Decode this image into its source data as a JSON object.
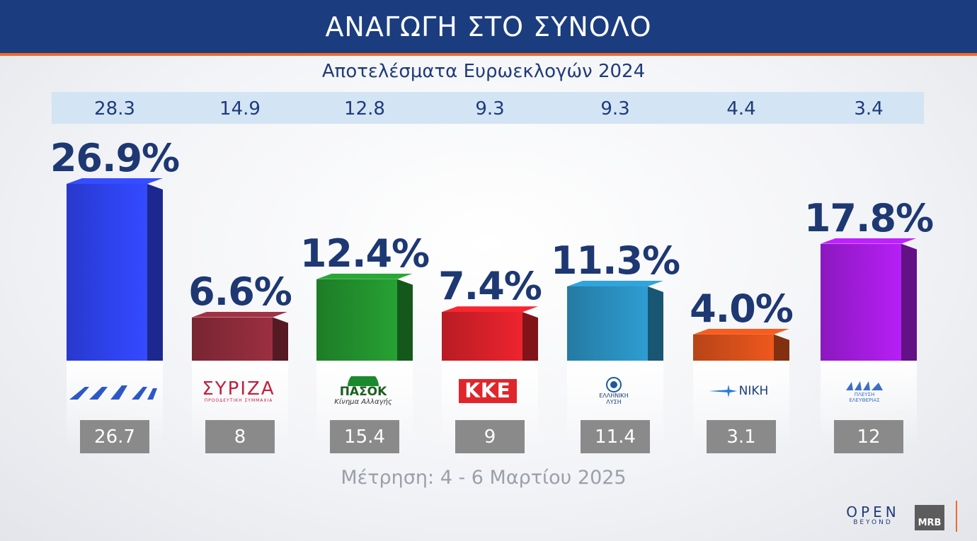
{
  "header": {
    "title": "ΑΝΑΓΩΓΗ ΣΤΟ ΣΥΝΟΛΟ"
  },
  "subtitle": "Αποτελέσματα Ευρωεκλογών 2024",
  "footer": {
    "survey_dates": "Μέτρηση: 4 - 6 Μαρτίου 2025"
  },
  "branding": {
    "open": "OPEN",
    "open_sub": "BEYOND",
    "mrb": "MRB"
  },
  "chart_data": {
    "type": "bar",
    "title": "ΑΝΑΓΩΓΗ ΣΤΟ ΣΥΝΟΛΟ",
    "categories": [
      "ΝΔ",
      "ΣΥΡΙΖΑ",
      "ΠΑΣΟΚ",
      "ΚΚΕ",
      "ΕΛΛΗΝΙΚΗ ΛΥΣΗ",
      "ΝΙΚΗ",
      "ΠΛΕΥΣΗ ΕΛΕΥΘΕΡΙΑΣ"
    ],
    "values": [
      26.9,
      6.6,
      12.4,
      7.4,
      11.3,
      4.0,
      17.8
    ],
    "value_labels": [
      "26.9%",
      "6.6%",
      "12.4%",
      "7.4%",
      "11.3%",
      "4.0%",
      "17.8%"
    ],
    "euro_2024": [
      "28.3",
      "14.9",
      "12.8",
      "9.3",
      "9.3",
      "4.4",
      "3.4"
    ],
    "previous_measurement": [
      "26.7",
      "8",
      "15.4",
      "9",
      "11.4",
      "3.1",
      "12"
    ],
    "colors": [
      "#2f43f0",
      "#8d2b3b",
      "#23922e",
      "#d8212a",
      "#2a8fbf",
      "#d8501b",
      "#a51ce0"
    ],
    "ylim": [
      0,
      30
    ]
  },
  "logos": [
    {
      "name": "nd-logo",
      "text": ""
    },
    {
      "name": "syriza-logo",
      "text": "ΣΥΡΙΖΑ",
      "sub": "ΠΡΟΟΔΕΥΤΙΚΗ ΣΥΜΜΑΧΙΑ"
    },
    {
      "name": "pasok-logo",
      "text": "ΠΑΣΟΚ",
      "sub": "Κίνημα Αλλαγής"
    },
    {
      "name": "kke-logo",
      "text": "ΚΚΕ"
    },
    {
      "name": "elliniki-lysi-logo",
      "text": "ΕΛΛΗΝΙΚΗ",
      "sub": "ΛΥΣΗ"
    },
    {
      "name": "niki-logo",
      "text": "ΝΙΚΗ"
    },
    {
      "name": "plefsi-logo",
      "text": "ΠΛΕΥΣΗ",
      "sub": "ΕΛΕΥΘΕΡΙΑΣ"
    }
  ]
}
